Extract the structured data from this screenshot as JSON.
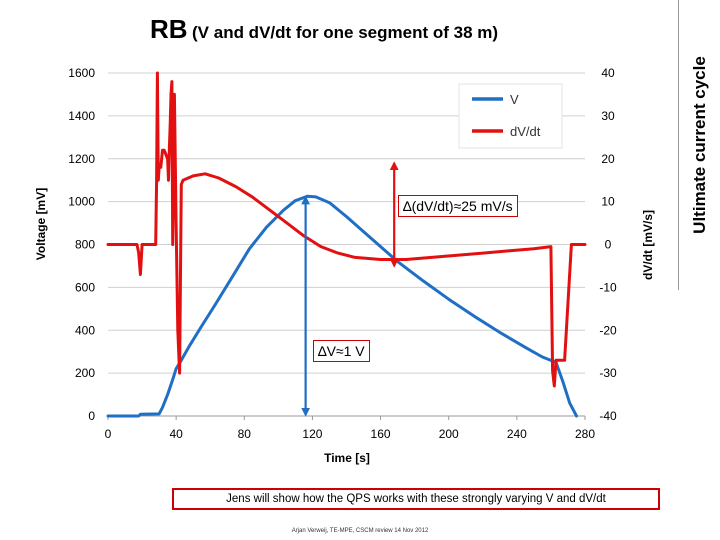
{
  "title": {
    "main": "RB",
    "sub": "(V and dV/dt for one segment of 38 m)"
  },
  "sidebar_label": "Ultimate current cycle",
  "note": "Jens will show how the QPS works with these strongly varying V and dV/dt",
  "footer": "Arjan Verweij, TE-MPE, CSCM review 14 Nov 2012",
  "colors": {
    "voltage": "#1f6fc4",
    "derivative": "#e21010",
    "annotation_border": "#cc0000"
  },
  "chart_data": {
    "type": "line",
    "xlabel": "Time [s]",
    "ylabel": "Voltage [mV]",
    "y2label": "dV/dt [mV/s]",
    "xlim": [
      0,
      280
    ],
    "ylim": [
      0,
      1600
    ],
    "y2lim": [
      -40,
      40
    ],
    "xticks": [
      0,
      40,
      80,
      120,
      160,
      200,
      240,
      280
    ],
    "yticks": [
      0,
      200,
      400,
      600,
      800,
      1000,
      1200,
      1400,
      1600
    ],
    "y2ticks": [
      -40,
      -30,
      -20,
      -10,
      0,
      10,
      20,
      30,
      40
    ],
    "grid": "horizontal",
    "legend": {
      "position": "top-right",
      "entries": [
        "V",
        "dV/dt"
      ]
    },
    "series": [
      {
        "name": "V",
        "axis": "left",
        "color": "#1f6fc4",
        "x": [
          0,
          18,
          19,
          30,
          32,
          35,
          38,
          40,
          43,
          48,
          55,
          63,
          73,
          83,
          93,
          103,
          110,
          117,
          122,
          130,
          140,
          150,
          160,
          170,
          185,
          200,
          215,
          230,
          245,
          255,
          263,
          267,
          271,
          275
        ],
        "y": [
          0,
          0,
          8,
          10,
          40,
          100,
          170,
          220,
          260,
          330,
          420,
          520,
          650,
          780,
          880,
          960,
          1005,
          1025,
          1022,
          995,
          930,
          860,
          790,
          720,
          630,
          545,
          465,
          390,
          320,
          275,
          250,
          160,
          60,
          0
        ]
      },
      {
        "name": "dV/dt",
        "axis": "right",
        "color": "#e21010",
        "x": [
          0,
          16,
          17,
          18,
          19,
          20,
          20.5,
          21,
          22,
          24,
          26,
          28,
          28.5,
          29,
          29.5,
          30,
          31,
          32,
          33,
          35,
          35.5,
          36,
          36.5,
          37,
          37.5,
          38,
          39,
          40,
          41,
          42,
          43,
          44,
          50,
          57,
          65,
          75,
          85,
          100,
          115,
          125,
          135,
          145,
          160,
          175,
          190,
          205,
          220,
          235,
          250,
          260,
          261,
          262,
          263,
          265,
          268,
          272,
          280
        ],
        "y": [
          0,
          0,
          0,
          -2,
          -7,
          0,
          0,
          0,
          0,
          0,
          0,
          0,
          15,
          40,
          15,
          18,
          18,
          22,
          22,
          20,
          15,
          22,
          28,
          35,
          38,
          0,
          35,
          5,
          -20,
          -30,
          14,
          15,
          16,
          16.5,
          15.5,
          13.5,
          11,
          6.5,
          2,
          -0.5,
          -2,
          -3,
          -3.5,
          -3.5,
          -3,
          -2.5,
          -2,
          -1.5,
          -1,
          -0.5,
          -29.5,
          -33,
          -27,
          -27,
          -27,
          0,
          0
        ]
      }
    ],
    "annotations": [
      {
        "text": "∆(dV/dt)≈25 mV/s",
        "kind": "double-arrow",
        "axis": "right",
        "x": 168,
        "from": -5,
        "to": 19
      },
      {
        "text": "∆V≈1 V",
        "kind": "double-arrow",
        "axis": "left",
        "x": 116,
        "from": 5,
        "to": 1020
      }
    ]
  }
}
